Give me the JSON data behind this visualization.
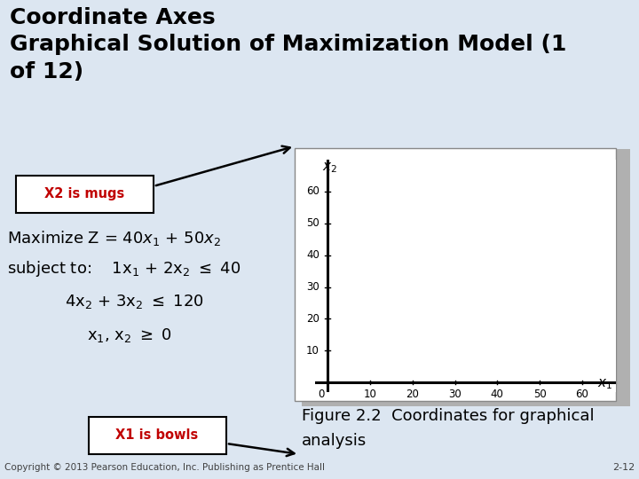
{
  "title_line1": "Coordinate Axes",
  "title_line2": "Graphical Solution of Maximization Model (1",
  "title_line3": "of 12)",
  "title_bg_color": "#dce6f1",
  "teal_line_color": "#31849b",
  "slide_bg_color": "#dce6f1",
  "plot_bg_color": "#ffffff",
  "shadow_color": "#c0c0c0",
  "x_ticks": [
    10,
    20,
    30,
    40,
    50,
    60
  ],
  "y_ticks": [
    10,
    20,
    30,
    40,
    50,
    60
  ],
  "label1_text": "X2 is mugs",
  "label1_color": "#c00000",
  "label2_text": "X1 is bowls",
  "label2_color": "#c00000",
  "fig_caption": "Figure 2.2  Coordinates for graphical",
  "fig_caption2": "analysis",
  "copyright_text": "Copyright © 2013 Pearson Education, Inc. Publishing as Prentice Hall",
  "slide_number": "2-12"
}
